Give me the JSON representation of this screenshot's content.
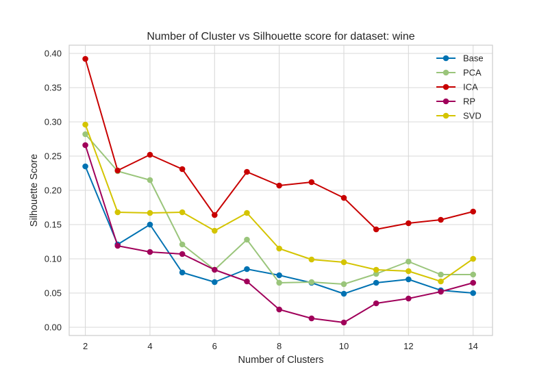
{
  "chart_data": {
    "type": "line",
    "title": "Number of Cluster vs Silhouette score for dataset: wine",
    "xlabel": "Number of Clusters",
    "ylabel": "Silhouette Score",
    "xlim": [
      1.5,
      14.6
    ],
    "ylim": [
      -0.012,
      0.412
    ],
    "xticks": [
      2,
      4,
      6,
      8,
      10,
      12,
      14
    ],
    "yticks": [
      0.0,
      0.05,
      0.1,
      0.15,
      0.2,
      0.25,
      0.3,
      0.35,
      0.4
    ],
    "ytick_labels": [
      "0.00",
      "0.05",
      "0.10",
      "0.15",
      "0.20",
      "0.25",
      "0.30",
      "0.35",
      "0.40"
    ],
    "grid": true,
    "legend_position": "top-right",
    "x": [
      2,
      3,
      4,
      5,
      6,
      7,
      8,
      9,
      10,
      11,
      12,
      13,
      14
    ],
    "series": [
      {
        "name": "Base",
        "color": "#0072b2",
        "values": [
          0.235,
          0.121,
          0.15,
          0.08,
          0.066,
          0.085,
          0.076,
          0.065,
          0.049,
          0.065,
          0.07,
          0.054,
          0.05
        ]
      },
      {
        "name": "PCA",
        "color": "#9ac57b",
        "values": [
          0.282,
          0.228,
          0.215,
          0.121,
          0.084,
          0.128,
          0.065,
          0.066,
          0.063,
          0.078,
          0.096,
          0.077,
          0.077
        ]
      },
      {
        "name": "ICA",
        "color": "#c80000",
        "values": [
          0.392,
          0.229,
          0.252,
          0.231,
          0.164,
          0.227,
          0.207,
          0.212,
          0.189,
          0.143,
          0.152,
          0.157,
          0.169
        ]
      },
      {
        "name": "RP",
        "color": "#a0005a",
        "values": [
          0.266,
          0.119,
          0.11,
          0.107,
          0.084,
          0.067,
          0.026,
          0.013,
          0.007,
          0.035,
          0.042,
          0.052,
          0.065
        ]
      },
      {
        "name": "SVD",
        "color": "#d4c400",
        "values": [
          0.296,
          0.168,
          0.167,
          0.168,
          0.141,
          0.167,
          0.115,
          0.099,
          0.095,
          0.084,
          0.082,
          0.067,
          0.1
        ]
      }
    ]
  }
}
